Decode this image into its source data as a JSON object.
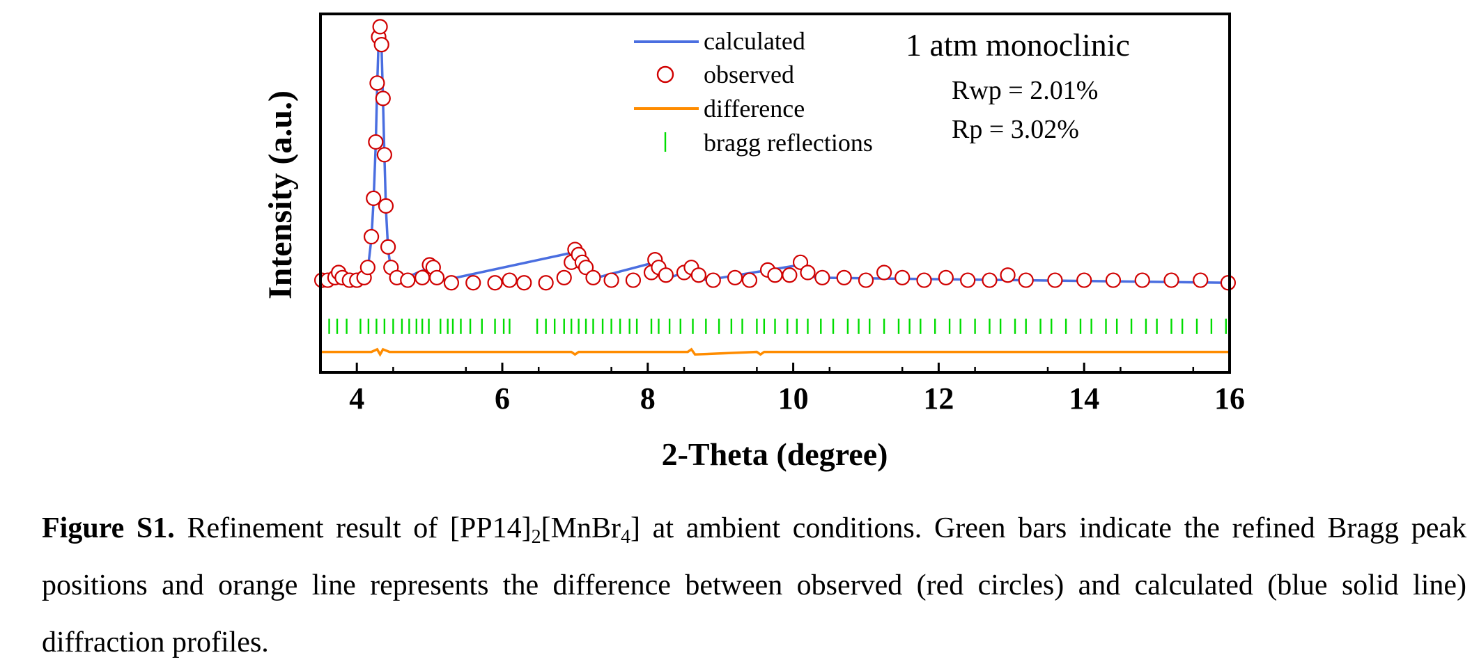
{
  "chart_data": {
    "type": "scatter",
    "title": "",
    "xlabel": "2-Theta (degree)",
    "ylabel": "Intensity (a.u.)",
    "xlim": [
      3.5,
      16
    ],
    "xticks": [
      4,
      6,
      8,
      10,
      12,
      14,
      16
    ],
    "xtick_labels": [
      "4",
      "6",
      "8",
      "10",
      "12",
      "14",
      "16"
    ],
    "ylim": [
      -0.35,
      1.05
    ],
    "yticks_visible": false,
    "grid": false,
    "legend": {
      "position": "top-center",
      "entries": [
        {
          "label": "calculated",
          "style": "line",
          "color": "#4a6ee0"
        },
        {
          "label": "observed",
          "style": "open-circle",
          "color": "#d00000"
        },
        {
          "label": "difference",
          "style": "line",
          "color": "#ff8c00"
        },
        {
          "label": "bragg reflections",
          "style": "tick",
          "color": "#00dd00"
        }
      ]
    },
    "annotations": {
      "phase": "1 atm monoclinic",
      "rwp": "Rwp = 2.01%",
      "rp": "Rp = 3.02%"
    },
    "series": [
      {
        "name": "observed",
        "kind": "markers",
        "color": "#d00000",
        "points": [
          [
            3.52,
            0.01
          ],
          [
            3.6,
            0.01
          ],
          [
            3.7,
            0.02
          ],
          [
            3.75,
            0.04
          ],
          [
            3.8,
            0.02
          ],
          [
            3.9,
            0.01
          ],
          [
            4.0,
            0.01
          ],
          [
            4.1,
            0.02
          ],
          [
            4.15,
            0.06
          ],
          [
            4.2,
            0.18
          ],
          [
            4.23,
            0.33
          ],
          [
            4.26,
            0.55
          ],
          [
            4.28,
            0.78
          ],
          [
            4.3,
            0.96
          ],
          [
            4.32,
            1.0
          ],
          [
            4.34,
            0.93
          ],
          [
            4.36,
            0.72
          ],
          [
            4.38,
            0.5
          ],
          [
            4.4,
            0.3
          ],
          [
            4.43,
            0.14
          ],
          [
            4.47,
            0.06
          ],
          [
            4.55,
            0.02
          ],
          [
            4.7,
            0.01
          ],
          [
            4.9,
            0.02
          ],
          [
            5.0,
            0.07
          ],
          [
            5.05,
            0.06
          ],
          [
            5.1,
            0.02
          ],
          [
            5.3,
            0.0
          ],
          [
            5.6,
            0.0
          ],
          [
            5.9,
            0.0
          ],
          [
            6.1,
            0.01
          ],
          [
            6.3,
            0.0
          ],
          [
            6.6,
            0.0
          ],
          [
            6.85,
            0.02
          ],
          [
            6.95,
            0.08
          ],
          [
            7.0,
            0.13
          ],
          [
            7.05,
            0.11
          ],
          [
            7.1,
            0.08
          ],
          [
            7.15,
            0.06
          ],
          [
            7.25,
            0.02
          ],
          [
            7.5,
            0.01
          ],
          [
            7.8,
            0.01
          ],
          [
            8.05,
            0.04
          ],
          [
            8.1,
            0.09
          ],
          [
            8.15,
            0.06
          ],
          [
            8.25,
            0.03
          ],
          [
            8.5,
            0.04
          ],
          [
            8.6,
            0.06
          ],
          [
            8.7,
            0.03
          ],
          [
            8.9,
            0.01
          ],
          [
            9.2,
            0.02
          ],
          [
            9.4,
            0.01
          ],
          [
            9.65,
            0.05
          ],
          [
            9.75,
            0.03
          ],
          [
            9.95,
            0.03
          ],
          [
            10.1,
            0.08
          ],
          [
            10.2,
            0.04
          ],
          [
            10.4,
            0.02
          ],
          [
            10.7,
            0.02
          ],
          [
            11.0,
            0.01
          ],
          [
            11.25,
            0.04
          ],
          [
            11.5,
            0.02
          ],
          [
            11.8,
            0.01
          ],
          [
            12.1,
            0.02
          ],
          [
            12.4,
            0.01
          ],
          [
            12.7,
            0.01
          ],
          [
            12.95,
            0.03
          ],
          [
            13.2,
            0.01
          ],
          [
            13.6,
            0.01
          ],
          [
            14.0,
            0.01
          ],
          [
            14.4,
            0.01
          ],
          [
            14.8,
            0.01
          ],
          [
            15.2,
            0.01
          ],
          [
            15.6,
            0.01
          ],
          [
            15.98,
            0.0
          ]
        ]
      },
      {
        "name": "calculated",
        "kind": "line",
        "color": "#4a6ee0",
        "points": [
          [
            3.52,
            0.01
          ],
          [
            3.75,
            0.03
          ],
          [
            4.0,
            0.01
          ],
          [
            4.15,
            0.05
          ],
          [
            4.2,
            0.17
          ],
          [
            4.23,
            0.32
          ],
          [
            4.26,
            0.54
          ],
          [
            4.28,
            0.77
          ],
          [
            4.3,
            0.95
          ],
          [
            4.32,
            0.99
          ],
          [
            4.34,
            0.92
          ],
          [
            4.36,
            0.71
          ],
          [
            4.38,
            0.49
          ],
          [
            4.4,
            0.29
          ],
          [
            4.43,
            0.13
          ],
          [
            4.47,
            0.05
          ],
          [
            4.6,
            0.01
          ],
          [
            5.0,
            0.06
          ],
          [
            5.2,
            0.01
          ],
          [
            7.0,
            0.12
          ],
          [
            7.3,
            0.02
          ],
          [
            8.1,
            0.08
          ],
          [
            8.3,
            0.02
          ],
          [
            8.6,
            0.05
          ],
          [
            8.8,
            0.01
          ],
          [
            10.1,
            0.07
          ],
          [
            10.3,
            0.02
          ],
          [
            16.0,
            0.0
          ]
        ]
      },
      {
        "name": "difference",
        "kind": "line",
        "color": "#ff8c00",
        "points": [
          [
            3.52,
            -0.27
          ],
          [
            4.2,
            -0.27
          ],
          [
            4.28,
            -0.26
          ],
          [
            4.32,
            -0.28
          ],
          [
            4.36,
            -0.26
          ],
          [
            4.45,
            -0.27
          ],
          [
            6.95,
            -0.27
          ],
          [
            7.0,
            -0.28
          ],
          [
            7.05,
            -0.27
          ],
          [
            8.55,
            -0.27
          ],
          [
            8.6,
            -0.26
          ],
          [
            8.65,
            -0.28
          ],
          [
            9.5,
            -0.27
          ],
          [
            9.55,
            -0.28
          ],
          [
            9.6,
            -0.27
          ],
          [
            16.0,
            -0.27
          ]
        ]
      },
      {
        "name": "bragg reflections",
        "kind": "ticks",
        "color": "#00dd00",
        "y_top": -0.14,
        "y_bottom": -0.2,
        "positions": [
          3.62,
          3.73,
          3.86,
          4.05,
          4.16,
          4.27,
          4.38,
          4.5,
          4.62,
          4.72,
          4.82,
          4.9,
          4.99,
          5.15,
          5.25,
          5.32,
          5.43,
          5.56,
          5.72,
          5.9,
          6.02,
          6.1,
          6.48,
          6.6,
          6.72,
          6.85,
          6.95,
          7.05,
          7.15,
          7.25,
          7.38,
          7.5,
          7.62,
          7.75,
          7.85,
          8.05,
          8.15,
          8.3,
          8.45,
          8.62,
          8.8,
          8.98,
          9.15,
          9.3,
          9.5,
          9.6,
          9.75,
          9.92,
          10.05,
          10.2,
          10.38,
          10.55,
          10.75,
          10.9,
          11.05,
          11.25,
          11.45,
          11.6,
          11.75,
          11.95,
          12.15,
          12.3,
          12.5,
          12.7,
          12.85,
          13.05,
          13.2,
          13.4,
          13.55,
          13.75,
          13.95,
          14.1,
          14.3,
          14.45,
          14.65,
          14.85,
          15.0,
          15.2,
          15.35,
          15.55,
          15.75,
          15.95
        ]
      }
    ]
  },
  "caption": {
    "label": "Figure S1.",
    "text_1": " Refinement result of [PP14]",
    "sub_1": "2",
    "text_2": "[MnBr",
    "sub_2": "4",
    "text_3": "] at ambient conditions. Green bars indicate the refined Bragg peak positions and orange line represents the difference between observed (red circles) and calculated (blue solid line) diffraction profiles."
  }
}
